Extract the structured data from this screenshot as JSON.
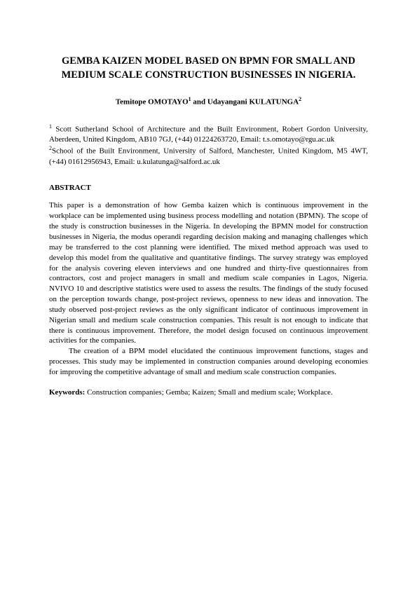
{
  "title": "GEMBA KAIZEN MODEL BASED ON BPMN FOR SMALL AND MEDIUM SCALE CONSTRUCTION BUSINESSES IN NIGERIA.",
  "authors": {
    "a1_name": "Temitope OMOTAYO",
    "a1_sup": "1",
    "sep": " and ",
    "a2_name": "Udayangani KULATUNGA",
    "a2_sup": "2"
  },
  "affiliations": {
    "aff1_sup": "1",
    "aff1_text": " Scott Sutherland School of Architecture and the Built Environment, Robert Gordon University, Aberdeen, United Kingdom, AB10 7GJ, (+44) 01224263720, Email: t.s.omotayo@rgu.ac.uk",
    "aff2_sup": "2",
    "aff2_text": "School of the Built Environment, University of Salford, Manchester, United Kingdom, M5 4WT, (+44) 01612956943, Email: u.kulatunga@salford.ac.uk"
  },
  "abstract_heading": "ABSTRACT",
  "abstract_para1": "This paper is a demonstration of how Gemba kaizen which is continuous improvement in the workplace can be implemented using business process modelling and notation (BPMN). The scope of the study is construction businesses in the Nigeria. In developing the BPMN model for construction businesses in Nigeria, the modus operandi regarding decision making and managing challenges which may be transferred to the cost planning were identified. The mixed method approach was used to develop this model from the qualitative and quantitative findings. The survey strategy was employed for the analysis covering eleven interviews and one hundred and thirty-five questionnaires from contractors, cost and project managers in small and medium scale companies in Lagos, Nigeria. NVIVO 10 and descriptive statistics were used to assess the results. The findings of the study focused on the perception towards change, post-project reviews, openness to new ideas and innovation. The study observed post-project reviews as the only significant indicator of continuous improvement in Nigerian small and medium scale construction companies. This result is not enough to indicate that there is continuous improvement. Therefore, the model design focused on continuous improvement activities for the companies.",
  "abstract_para2": "The creation of a BPM model elucidated the continuous improvement functions, stages and processes. This study may be implemented in construction companies around developing economies for improving the competitive advantage of small and medium scale construction companies.",
  "keywords": {
    "label": "Keywords: ",
    "text": "Construction companies; Gemba; Kaizen; Small and medium scale; Workplace."
  }
}
